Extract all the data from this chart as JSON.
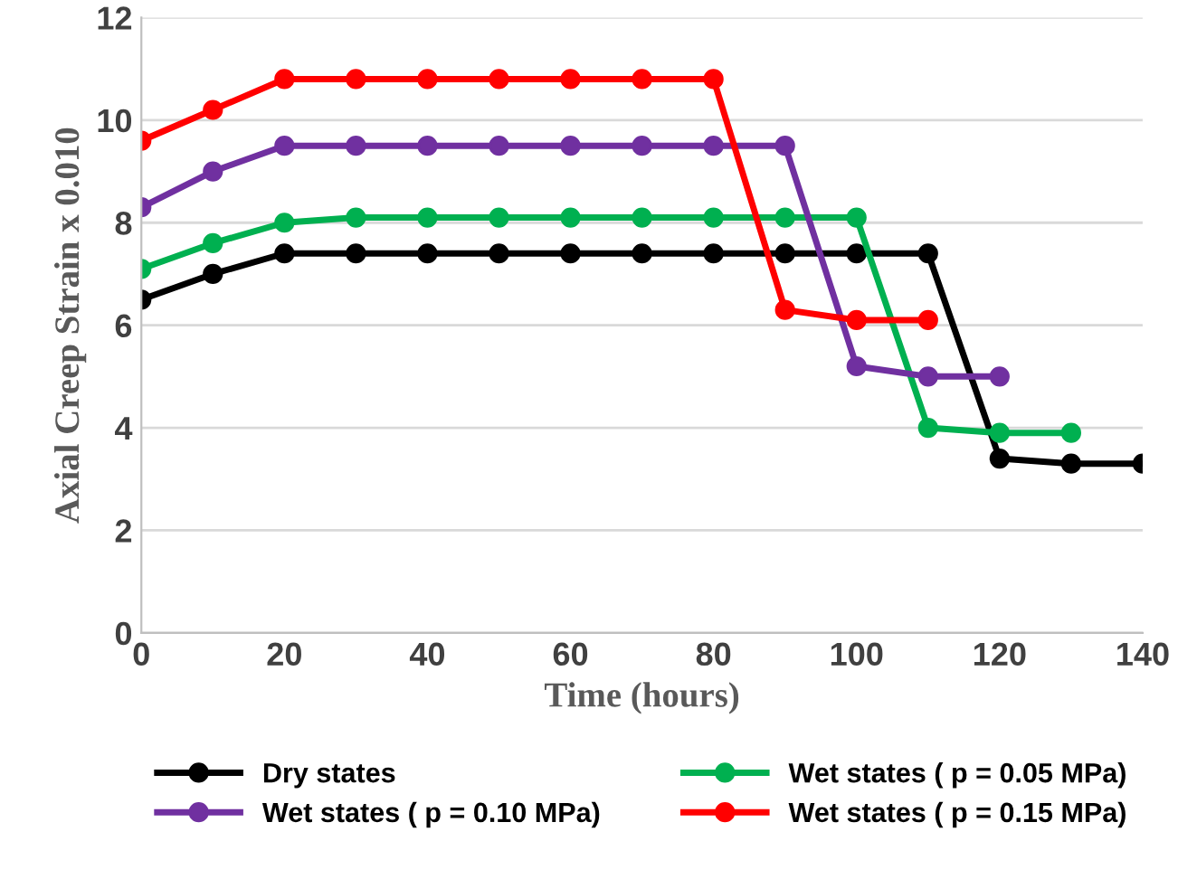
{
  "chart_data": {
    "type": "line",
    "xlabel": "Time (hours)",
    "ylabel": "Axial Creep Strain x 0.010",
    "xlim": [
      0,
      140
    ],
    "xticks": [
      0,
      20,
      40,
      60,
      80,
      100,
      120,
      140
    ],
    "ylim": [
      0,
      12
    ],
    "yticks": [
      0,
      2,
      4,
      6,
      8,
      10,
      12
    ],
    "grid": "y",
    "legend": "bottom",
    "marker": "circle",
    "line_style": "solid",
    "series": [
      {
        "name": "Dry states",
        "color": "#000000",
        "x": [
          0,
          10,
          20,
          30,
          40,
          50,
          60,
          70,
          80,
          90,
          100,
          110,
          120,
          130,
          140
        ],
        "values": [
          6.5,
          7.0,
          7.4,
          7.4,
          7.4,
          7.4,
          7.4,
          7.4,
          7.4,
          7.4,
          7.4,
          7.4,
          3.4,
          3.3,
          3.3
        ]
      },
      {
        "name": "Wet states ( p = 0.05 MPa)",
        "color": "#00b050",
        "x": [
          0,
          10,
          20,
          30,
          40,
          50,
          60,
          70,
          80,
          90,
          100,
          110,
          120,
          130
        ],
        "values": [
          7.1,
          7.6,
          8.0,
          8.1,
          8.1,
          8.1,
          8.1,
          8.1,
          8.1,
          8.1,
          8.1,
          4.0,
          3.9,
          3.9
        ]
      },
      {
        "name": "Wet states ( p = 0.10 MPa)",
        "color": "#7030a0",
        "x": [
          0,
          10,
          20,
          30,
          40,
          50,
          60,
          70,
          80,
          90,
          100,
          110,
          120
        ],
        "values": [
          8.3,
          9.0,
          9.5,
          9.5,
          9.5,
          9.5,
          9.5,
          9.5,
          9.5,
          9.5,
          5.2,
          5.0,
          5.0
        ]
      },
      {
        "name": "Wet states ( p = 0.15 MPa)",
        "color": "#ff0000",
        "x": [
          0,
          10,
          20,
          30,
          40,
          50,
          60,
          70,
          80,
          90,
          100,
          110
        ],
        "values": [
          9.6,
          10.2,
          10.8,
          10.8,
          10.8,
          10.8,
          10.8,
          10.8,
          10.8,
          6.3,
          6.1,
          6.1
        ]
      }
    ]
  }
}
